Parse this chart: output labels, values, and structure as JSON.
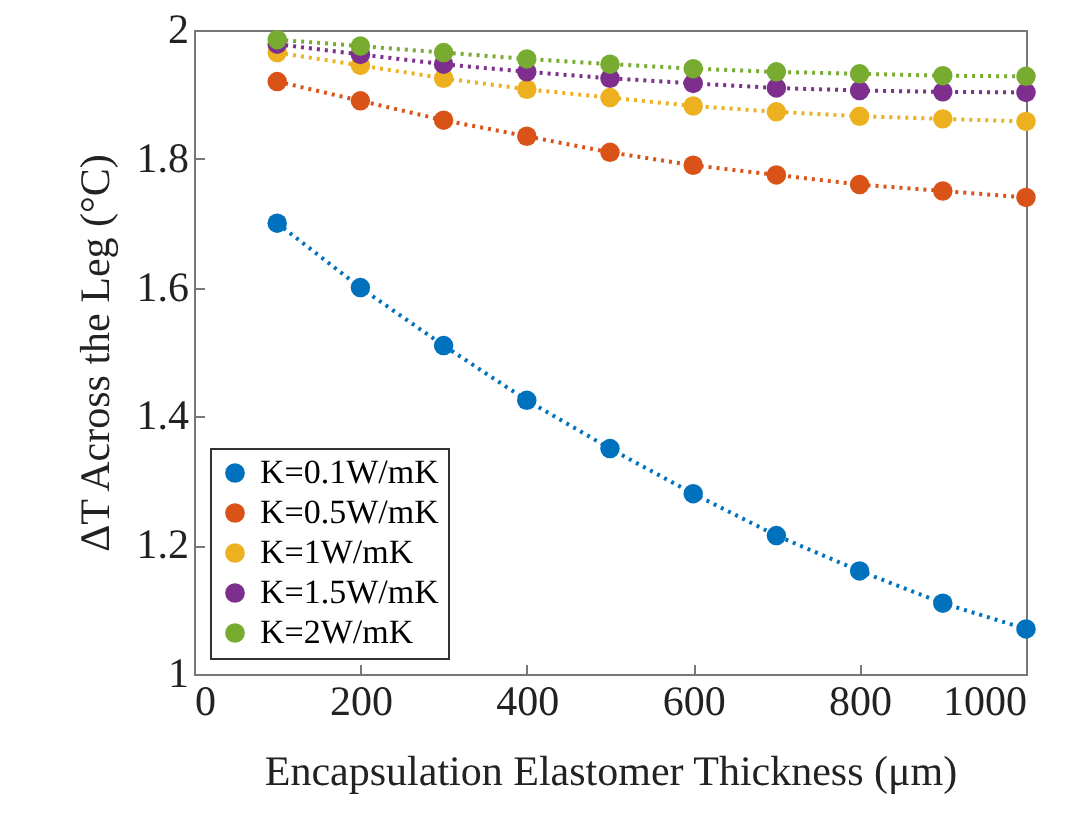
{
  "chart_data": {
    "type": "line",
    "xlabel": "Encapsulation Elastomer Thickness (μm)",
    "ylabel": "ΔT Across the Leg (°C)",
    "x": [
      100,
      200,
      300,
      400,
      500,
      600,
      700,
      800,
      900,
      1000
    ],
    "series": [
      {
        "name": "K=0.1W/mK",
        "color": "#0072bd",
        "values": [
          1.7,
          1.6,
          1.51,
          1.425,
          1.35,
          1.28,
          1.215,
          1.16,
          1.11,
          1.07
        ]
      },
      {
        "name": "K=0.5W/mK",
        "color": "#d95319",
        "values": [
          1.92,
          1.89,
          1.86,
          1.835,
          1.81,
          1.79,
          1.775,
          1.76,
          1.75,
          1.74
        ]
      },
      {
        "name": "K=1W/mK",
        "color": "#edb120",
        "values": [
          1.965,
          1.945,
          1.925,
          1.908,
          1.895,
          1.882,
          1.873,
          1.866,
          1.862,
          1.858
        ]
      },
      {
        "name": "K=1.5W/mK",
        "color": "#7e2f8e",
        "values": [
          1.978,
          1.962,
          1.947,
          1.935,
          1.925,
          1.917,
          1.91,
          1.906,
          1.904,
          1.903
        ]
      },
      {
        "name": "K=2W/mK",
        "color": "#77ac30",
        "values": [
          1.985,
          1.975,
          1.965,
          1.955,
          1.947,
          1.94,
          1.935,
          1.932,
          1.929,
          1.928
        ]
      }
    ],
    "xlim": [
      0,
      1000
    ],
    "xticks": [
      0,
      200,
      400,
      600,
      800,
      1000
    ],
    "ylim": [
      1,
      2
    ],
    "yticks": [
      1,
      1.2,
      1.4,
      1.6,
      1.8,
      2
    ],
    "legend": "bottom left",
    "marker": "circle",
    "line_style": "dotted",
    "grid": false
  }
}
